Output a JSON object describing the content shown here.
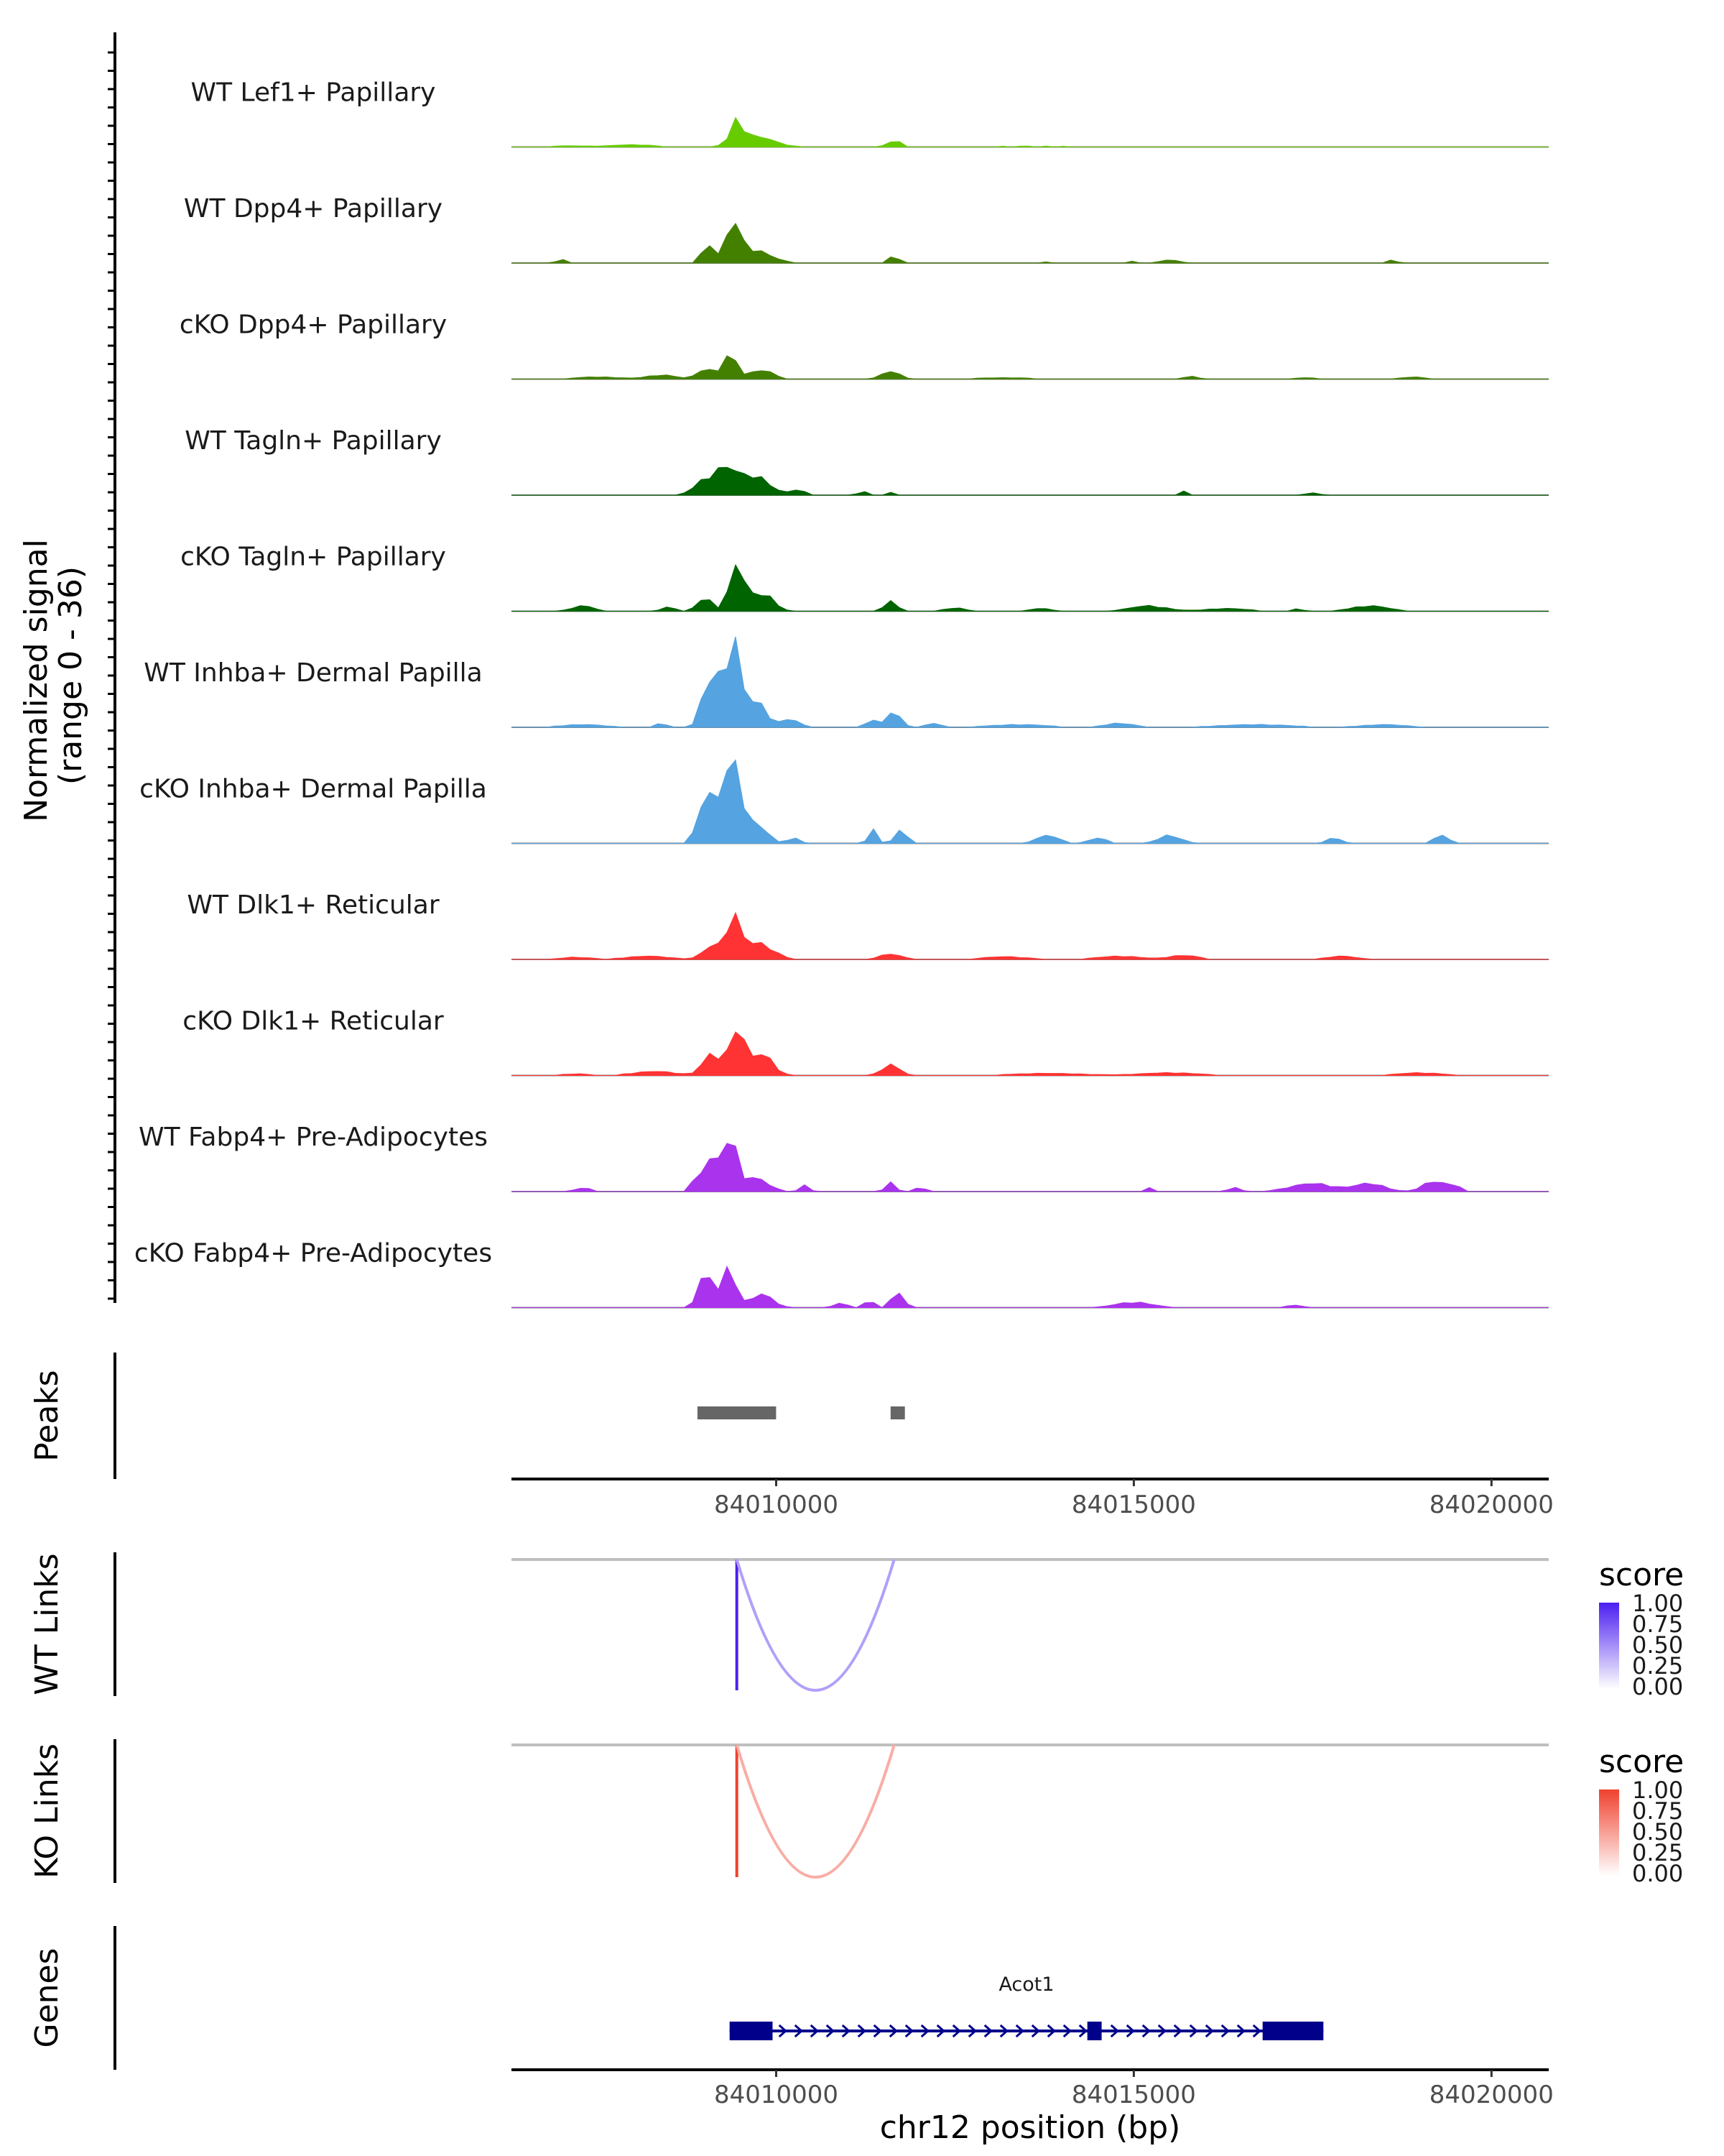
{
  "chart_data": {
    "type": "area",
    "title": "",
    "xlabel": "chr12 position (bp)",
    "xlim": [
      84006300,
      84020800
    ],
    "x_ticks": [
      84010000,
      84015000,
      84020000
    ],
    "x_tick_labels": [
      "84010000",
      "84015000",
      "84020000"
    ],
    "coverage": {
      "ylabel": "Normalized signal\n(range 0 - 36)",
      "ylabel_lines": [
        "Normalized signal",
        "(range 0 - 36)"
      ],
      "ylim": [
        0,
        36
      ],
      "tracks": [
        {
          "name": "WT Lef1+ Papillary",
          "color": "#66cc00",
          "peaks": [
            [
              84009450,
              8,
              80
            ],
            [
              84009700,
              4,
              250
            ],
            [
              84011650,
              2.5,
              90
            ],
            [
              84008000,
              0.8,
              300
            ],
            [
              84007100,
              0.4,
              300
            ],
            [
              84013600,
              0.3,
              800
            ]
          ]
        },
        {
          "name": "WT Dpp4+ Papillary",
          "color": "#448000",
          "peaks": [
            [
              84009400,
              13,
              90
            ],
            [
              84009050,
              7,
              80
            ],
            [
              84009650,
              5,
              250
            ],
            [
              84011650,
              2.5,
              80
            ],
            [
              84007000,
              1.5,
              60
            ],
            [
              84015500,
              1.2,
              120
            ],
            [
              84015000,
              0.8,
              60
            ],
            [
              84018600,
              1,
              80
            ],
            [
              84013800,
              0.6,
              50
            ]
          ]
        },
        {
          "name": "cKO Dpp4+ Papillary",
          "color": "#448000",
          "peaks": [
            [
              84009350,
              9,
              100
            ],
            [
              84009000,
              4,
              100
            ],
            [
              84009800,
              3.5,
              150
            ],
            [
              84011600,
              3,
              120
            ],
            [
              84008400,
              1.5,
              200
            ],
            [
              84007500,
              0.8,
              300
            ],
            [
              84015800,
              1,
              100
            ],
            [
              84017400,
              0.6,
              120
            ],
            [
              84018900,
              0.8,
              150
            ],
            [
              84013200,
              0.5,
              400
            ]
          ]
        },
        {
          "name": "WT Tagln+ Papillary",
          "color": "#006400",
          "peaks": [
            [
              84009300,
              9,
              150
            ],
            [
              84009000,
              5,
              150
            ],
            [
              84009700,
              7,
              200
            ],
            [
              84010300,
              2,
              100
            ],
            [
              84011200,
              1.5,
              60
            ],
            [
              84011600,
              1,
              60
            ],
            [
              84015700,
              1.5,
              60
            ],
            [
              84017500,
              1,
              80
            ]
          ]
        },
        {
          "name": "cKO Tagln+ Papillary",
          "color": "#006400",
          "peaks": [
            [
              84009450,
              17,
              100
            ],
            [
              84009000,
              5,
              100
            ],
            [
              84009800,
              7,
              150
            ],
            [
              84011600,
              4,
              80
            ],
            [
              84007300,
              2,
              150
            ],
            [
              84008500,
              1.5,
              100
            ],
            [
              84012500,
              1.2,
              150
            ],
            [
              84015200,
              2,
              250
            ],
            [
              84018300,
              2,
              250
            ],
            [
              84016300,
              1,
              300
            ],
            [
              84013700,
              1,
              150
            ],
            [
              84017300,
              1,
              60
            ]
          ]
        },
        {
          "name": "WT Inhba+ Dermal Papilla",
          "color": "#55a3e0",
          "peaks": [
            [
              84009400,
              32,
              90
            ],
            [
              84009150,
              18,
              90
            ],
            [
              84009000,
              10,
              80
            ],
            [
              84009700,
              10,
              150
            ],
            [
              84010200,
              3,
              120
            ],
            [
              84011650,
              6,
              90
            ],
            [
              84011350,
              3,
              80
            ],
            [
              84012200,
              1.5,
              100
            ],
            [
              84008400,
              1.5,
              80
            ],
            [
              84007300,
              1,
              300
            ],
            [
              84013400,
              1,
              400
            ],
            [
              84014800,
              1.5,
              200
            ],
            [
              84016700,
              1,
              500
            ],
            [
              84018500,
              1,
              300
            ]
          ]
        },
        {
          "name": "cKO Inhba+ Dermal Papilla",
          "color": "#55a3e0",
          "peaks": [
            [
              84009400,
              33,
              90
            ],
            [
              84009150,
              20,
              90
            ],
            [
              84008950,
              12,
              80
            ],
            [
              84009700,
              8,
              150
            ],
            [
              84010250,
              2,
              80
            ],
            [
              84011350,
              5,
              60
            ],
            [
              84011750,
              5,
              80
            ],
            [
              84013800,
              3,
              150
            ],
            [
              84014500,
              2,
              120
            ],
            [
              84015500,
              3,
              150
            ],
            [
              84017800,
              2,
              100
            ],
            [
              84019300,
              3,
              100
            ]
          ]
        },
        {
          "name": "WT Dlk1+ Reticular",
          "color": "#ff3333",
          "peaks": [
            [
              84009400,
              15,
              100
            ],
            [
              84009100,
              5,
              120
            ],
            [
              84009750,
              6,
              200
            ],
            [
              84011600,
              2,
              150
            ],
            [
              84008200,
              1.2,
              300
            ],
            [
              84013200,
              1,
              300
            ],
            [
              84014800,
              1.2,
              300
            ],
            [
              84015700,
              1.5,
              200
            ],
            [
              84017900,
              1.2,
              200
            ],
            [
              84007200,
              0.8,
              200
            ]
          ]
        },
        {
          "name": "cKO Dlk1+ Reticular",
          "color": "#ff3333",
          "peaks": [
            [
              84009450,
              18,
              100
            ],
            [
              84009100,
              8,
              120
            ],
            [
              84009800,
              8,
              150
            ],
            [
              84011600,
              4,
              120
            ],
            [
              84008300,
              1.5,
              300
            ],
            [
              84013800,
              0.8,
              500
            ],
            [
              84015500,
              1,
              400
            ],
            [
              84019000,
              1,
              300
            ],
            [
              84007200,
              0.6,
              200
            ]
          ]
        },
        {
          "name": "WT Fabp4+ Pre-Adipocytes",
          "color": "#aa33ee",
          "peaks": [
            [
              84009350,
              21,
              90
            ],
            [
              84009100,
              12,
              90
            ],
            [
              84008900,
              5,
              80
            ],
            [
              84009700,
              5,
              180
            ],
            [
              84010400,
              2.5,
              60
            ],
            [
              84011600,
              4,
              60
            ],
            [
              84012000,
              1.5,
              80
            ],
            [
              84007300,
              1.5,
              100
            ],
            [
              84015200,
              1.5,
              50
            ],
            [
              84016400,
              1.5,
              80
            ],
            [
              84017500,
              3,
              300
            ],
            [
              84018300,
              3,
              200
            ],
            [
              84019200,
              4,
              150
            ],
            [
              84019500,
              2,
              80
            ]
          ]
        },
        {
          "name": "cKO Fabp4+ Pre-Adipocytes",
          "color": "#aa33ee",
          "peaks": [
            [
              84009350,
              15,
              90
            ],
            [
              84009050,
              10,
              100
            ],
            [
              84008950,
              4,
              80
            ],
            [
              84009800,
              5,
              150
            ],
            [
              84010900,
              2,
              80
            ],
            [
              84011300,
              3,
              60
            ],
            [
              84011700,
              6,
              80
            ],
            [
              84015000,
              2,
              250
            ],
            [
              84017250,
              1,
              100
            ]
          ]
        }
      ]
    },
    "peaks_track": {
      "label": "Peaks",
      "color": "#666666",
      "ranges": [
        [
          84008900,
          84010000
        ],
        [
          84011600,
          84011800
        ]
      ]
    },
    "links": [
      {
        "label": "WT Links",
        "legend_title": "score",
        "color_high": "#4b1ff0",
        "color_low": "#ffffff",
        "legend_breaks": [
          "1.00",
          "0.75",
          "0.50",
          "0.25",
          "0.00"
        ],
        "arcs": [
          {
            "start": 84009450,
            "end": 84009455,
            "score": 0.85
          },
          {
            "start": 84009450,
            "end": 84011650,
            "score": 0.28
          }
        ]
      },
      {
        "label": "KO Links",
        "legend_title": "score",
        "color_high": "#f0412e",
        "color_low": "#ffffff",
        "legend_breaks": [
          "1.00",
          "0.75",
          "0.50",
          "0.25",
          "0.00"
        ],
        "arcs": [
          {
            "start": 84009450,
            "end": 84009455,
            "score": 0.85
          },
          {
            "start": 84009450,
            "end": 84011650,
            "score": 0.28
          }
        ]
      }
    ],
    "genes_track": {
      "label": "Genes",
      "color": "#00008b",
      "genes": [
        {
          "name": "Acot1",
          "strand": "+",
          "start": 84009350,
          "end": 84017650,
          "exons": [
            [
              84009350,
              84009950
            ],
            [
              84014350,
              84014550
            ],
            [
              84016800,
              84017650
            ]
          ]
        }
      ]
    }
  }
}
